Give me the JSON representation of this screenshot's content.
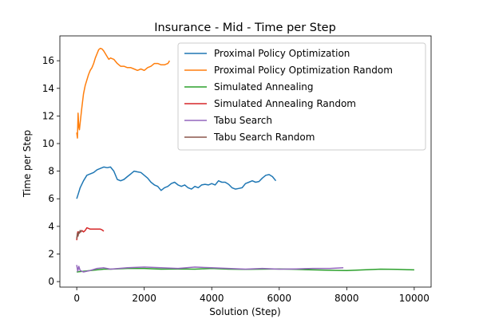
{
  "chart_data": {
    "type": "line",
    "title": "Insurance - Mid - Time per Step",
    "xlabel": "Solution (Step)",
    "ylabel": "Time per Step",
    "xlim": [
      -500,
      10500
    ],
    "ylim": [
      -0.4,
      17.8
    ],
    "xticks": [
      0,
      2000,
      4000,
      6000,
      8000,
      10000
    ],
    "yticks": [
      0,
      2,
      4,
      6,
      8,
      10,
      12,
      14,
      16
    ],
    "grid": false,
    "legend_position": "top-right",
    "series": [
      {
        "name": "Proximal Policy Optimization",
        "color": "#1f77b4",
        "x": [
          0,
          50,
          100,
          200,
          300,
          400,
          500,
          600,
          700,
          800,
          900,
          1000,
          1100,
          1200,
          1300,
          1400,
          1500,
          1600,
          1700,
          1800,
          1900,
          2000,
          2100,
          2200,
          2300,
          2400,
          2500,
          2600,
          2700,
          2800,
          2900,
          3000,
          3100,
          3200,
          3300,
          3400,
          3500,
          3600,
          3700,
          3800,
          3900,
          4000,
          4100,
          4200,
          4300,
          4400,
          4500,
          4600,
          4700,
          4800,
          4900,
          5000,
          5100,
          5200,
          5300,
          5400,
          5500,
          5600,
          5700,
          5800,
          5900
        ],
        "y": [
          6.0,
          6.4,
          6.8,
          7.3,
          7.7,
          7.8,
          7.9,
          8.1,
          8.2,
          8.3,
          8.25,
          8.3,
          8.0,
          7.4,
          7.3,
          7.4,
          7.6,
          7.8,
          8.0,
          7.95,
          7.9,
          7.7,
          7.5,
          7.2,
          7.0,
          6.9,
          6.6,
          6.8,
          6.9,
          7.1,
          7.2,
          7.0,
          6.9,
          7.0,
          6.8,
          6.7,
          6.9,
          6.8,
          7.0,
          7.05,
          7.0,
          7.1,
          7.0,
          7.3,
          7.2,
          7.2,
          7.05,
          6.8,
          6.7,
          6.75,
          6.8,
          7.1,
          7.2,
          7.3,
          7.2,
          7.25,
          7.5,
          7.7,
          7.75,
          7.6,
          7.3
        ]
      },
      {
        "name": "Proximal Policy Optimization Random",
        "color": "#ff7f0e",
        "x": [
          0,
          20,
          40,
          60,
          80,
          100,
          150,
          200,
          250,
          300,
          350,
          400,
          450,
          500,
          550,
          600,
          650,
          700,
          750,
          800,
          850,
          900,
          950,
          1000,
          1050,
          1100,
          1200,
          1300,
          1400,
          1500,
          1600,
          1700,
          1800,
          1900,
          2000,
          2100,
          2200,
          2300,
          2400,
          2500,
          2600,
          2700,
          2750
        ],
        "y": [
          10.8,
          10.4,
          12.2,
          11.2,
          11.0,
          11.5,
          12.6,
          13.6,
          14.2,
          14.6,
          15.0,
          15.3,
          15.5,
          15.8,
          16.2,
          16.5,
          16.8,
          16.9,
          16.85,
          16.7,
          16.5,
          16.3,
          16.1,
          16.2,
          16.15,
          16.1,
          15.8,
          15.6,
          15.6,
          15.5,
          15.5,
          15.4,
          15.3,
          15.4,
          15.3,
          15.5,
          15.6,
          15.8,
          15.8,
          15.7,
          15.7,
          15.8,
          16.0
        ]
      },
      {
        "name": "Simulated Annealing",
        "color": "#2ca02c",
        "x": [
          0,
          200,
          400,
          600,
          800,
          1000,
          1500,
          2000,
          2500,
          3000,
          3500,
          4000,
          4500,
          5000,
          5500,
          6000,
          6500,
          7000,
          7500,
          8000,
          8500,
          9000,
          9500,
          10000
        ],
        "y": [
          0.7,
          0.75,
          0.8,
          0.85,
          0.9,
          0.9,
          0.95,
          0.95,
          0.9,
          0.92,
          0.9,
          0.95,
          0.9,
          0.88,
          0.9,
          0.92,
          0.88,
          0.85,
          0.82,
          0.8,
          0.85,
          0.9,
          0.88,
          0.85
        ]
      },
      {
        "name": "Simulated Annealing Random",
        "color": "#d62728",
        "x": [
          0,
          30,
          60,
          100,
          150,
          200,
          250,
          300,
          350,
          400,
          500,
          600,
          700,
          750,
          800
        ],
        "y": [
          3.0,
          3.6,
          3.5,
          3.6,
          3.7,
          3.6,
          3.7,
          3.9,
          3.85,
          3.8,
          3.8,
          3.8,
          3.8,
          3.75,
          3.65
        ]
      },
      {
        "name": "Tabu Search",
        "color": "#9467bd",
        "x": [
          0,
          30,
          60,
          100,
          200,
          400,
          600,
          800,
          1000,
          1500,
          2000,
          2500,
          3000,
          3500,
          4000,
          4500,
          5000,
          5500,
          6000,
          6500,
          7000,
          7500,
          7900
        ],
        "y": [
          1.2,
          0.75,
          1.1,
          0.8,
          0.7,
          0.8,
          0.95,
          1.0,
          0.9,
          1.0,
          1.05,
          1.0,
          0.95,
          1.05,
          1.0,
          0.95,
          0.9,
          0.95,
          0.9,
          0.92,
          0.95,
          0.95,
          1.0
        ]
      },
      {
        "name": "Tabu Search Random",
        "color": "#8c564b",
        "x": [
          0,
          20,
          40,
          60,
          80,
          100,
          120,
          150
        ],
        "y": [
          3.1,
          3.5,
          3.3,
          3.6,
          3.5,
          3.7,
          3.6,
          3.7
        ]
      }
    ]
  }
}
